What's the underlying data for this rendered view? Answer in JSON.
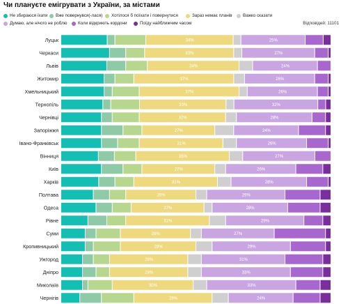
{
  "title": "Чи плануєте емігрувати з України, за містами",
  "responses_text": "Відповідей: 11101",
  "chart_data": {
    "type": "bar",
    "stacked": true,
    "orientation": "horizontal",
    "unit": "%",
    "legend_position": "top",
    "xlim": [
      0,
      100
    ],
    "series": [
      {
        "name": "Не збираюся їхати",
        "color": "#12bfb2"
      },
      {
        "name": "Вже повернувся(-лася)",
        "color": "#8fcaa6"
      },
      {
        "name": "Хотілося б поїхати і повернутися",
        "color": "#b7d78f"
      },
      {
        "name": "Зараз немає планів",
        "color": "#eed97e"
      },
      {
        "name": "Важко сказати",
        "color": "#cfcfcf"
      },
      {
        "name": "Думаю, але нічого не роблю",
        "color": "#c9a6e2"
      },
      {
        "name": "Коли відкриють кордони",
        "color": "#a866cf"
      },
      {
        "name": "Поїду найближчим часом",
        "color": "#7a2e9e"
      }
    ],
    "categories": [
      "Луцьк",
      "Черкаси",
      "Львів",
      "Житомир",
      "Хмельницький",
      "Тернопіль",
      "Чернівці",
      "Запоріжжя",
      "Івано-Франківськ",
      "Вінниця",
      "Київ",
      "Харків",
      "Полтава",
      "Одеса",
      "Рівне",
      "Суми",
      "Кропивницький",
      "Ужгород",
      "Дніпро",
      "Миколаїв",
      "Чернігів"
    ],
    "values": [
      [
        18,
        3,
        12,
        34,
        3,
        25,
        7,
        3
      ],
      [
        18,
        6,
        7,
        33,
        3,
        27,
        5,
        1
      ],
      [
        17,
        7,
        8,
        34,
        5,
        24,
        5,
        0
      ],
      [
        16,
        4,
        7,
        37,
        4,
        26,
        5,
        1
      ],
      [
        16,
        3,
        10,
        37,
        3,
        26,
        4,
        1
      ],
      [
        16,
        3,
        11,
        33,
        3,
        32,
        3,
        2
      ],
      [
        15,
        4,
        10,
        32,
        4,
        28,
        5,
        2
      ],
      [
        15,
        8,
        7,
        27,
        7,
        24,
        10,
        2
      ],
      [
        15,
        6,
        8,
        31,
        5,
        26,
        8,
        1
      ],
      [
        14,
        6,
        8,
        35,
        5,
        27,
        6,
        0
      ],
      [
        15,
        8,
        7,
        27,
        4,
        26,
        10,
        3
      ],
      [
        14,
        6,
        7,
        31,
        5,
        28,
        8,
        1
      ],
      [
        12,
        6,
        6,
        26,
        4,
        29,
        13,
        4
      ],
      [
        13,
        6,
        7,
        27,
        3,
        28,
        12,
        4
      ],
      [
        10,
        7,
        7,
        31,
        6,
        29,
        7,
        3
      ],
      [
        9,
        4,
        9,
        26,
        4,
        27,
        19,
        2
      ],
      [
        9,
        3,
        10,
        28,
        6,
        29,
        13,
        2
      ],
      [
        8,
        4,
        6,
        29,
        5,
        31,
        14,
        3
      ],
      [
        8,
        5,
        5,
        29,
        5,
        33,
        12,
        3
      ],
      [
        8,
        2,
        9,
        30,
        5,
        33,
        9,
        4
      ],
      [
        7,
        8,
        12,
        29,
        6,
        24,
        10,
        4
      ]
    ],
    "min_label_pct": 20
  }
}
